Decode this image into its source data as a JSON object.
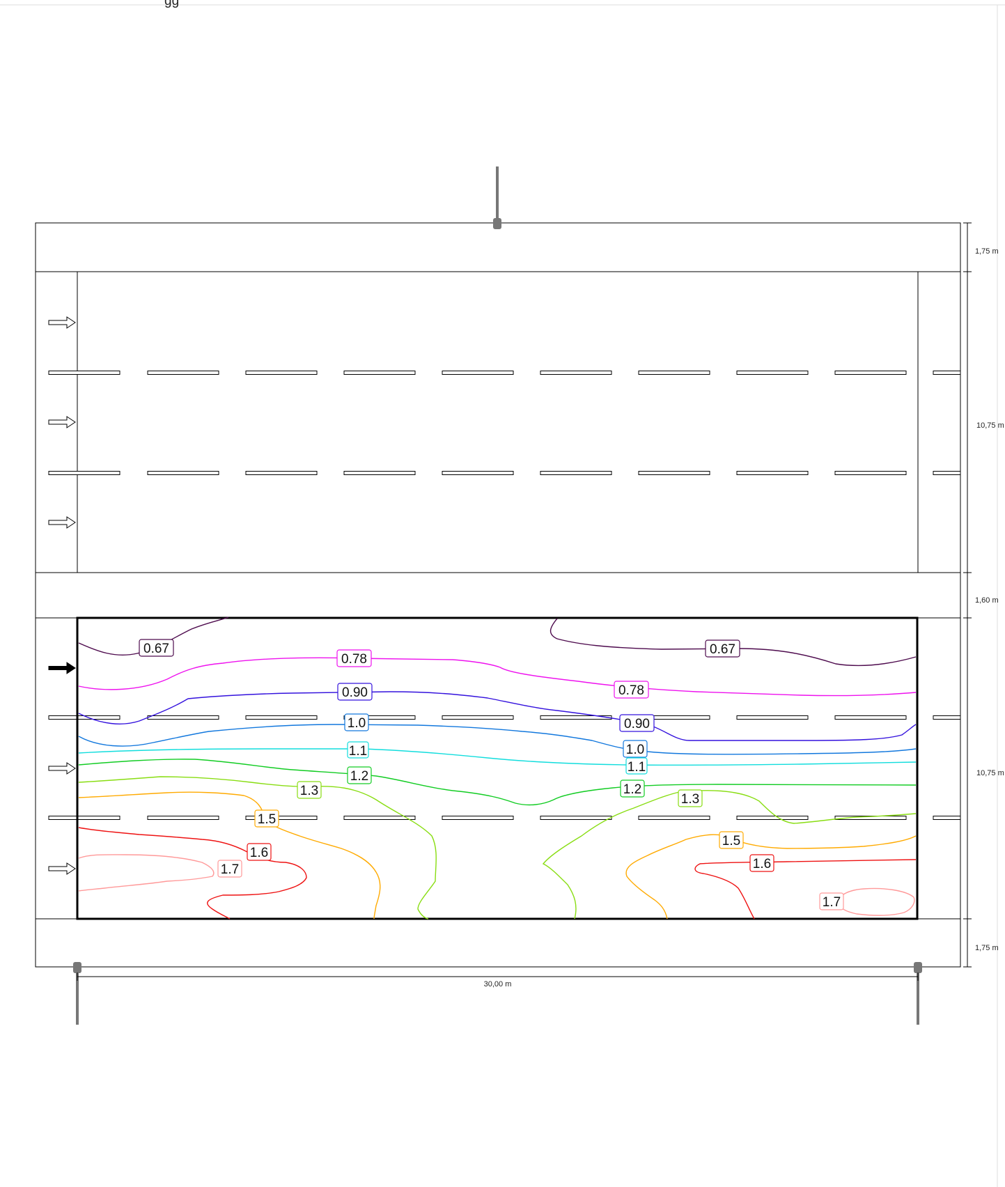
{
  "top_fragment": "gg",
  "dimensions": {
    "width_label": "30,00 m",
    "side_labels": [
      "1,75 m",
      "10,75 m",
      "1,60 m",
      "10,75 m",
      "1,75 m"
    ]
  },
  "roadway_upper": {
    "lanes": 3,
    "direction_arrows": [
      "outline-arrow-icon",
      "outline-arrow-icon",
      "outline-arrow-icon"
    ]
  },
  "roadway_lower": {
    "lanes": 3,
    "direction_arrows": [
      "filled-arrow-icon",
      "outline-arrow-icon",
      "outline-arrow-icon"
    ],
    "calculation_field": true
  },
  "poles": [
    {
      "name": "pole-top",
      "side": "top"
    },
    {
      "name": "pole-bottom-left",
      "side": "bottom"
    },
    {
      "name": "pole-bottom-right",
      "side": "bottom"
    }
  ],
  "contours": [
    {
      "level": "0.67",
      "color": "#4d0a4d"
    },
    {
      "level": "0.78",
      "color": "#ee11ee"
    },
    {
      "level": "0.90",
      "color": "#3311dd"
    },
    {
      "level": "1.0",
      "color": "#1177dd"
    },
    {
      "level": "1.1",
      "color": "#11dddd"
    },
    {
      "level": "1.2",
      "color": "#11cc22"
    },
    {
      "level": "1.3",
      "color": "#88dd11"
    },
    {
      "level": "1.5",
      "color": "#ffaa00"
    },
    {
      "level": "1.6",
      "color": "#ee1111"
    },
    {
      "level": "1.7",
      "color": "#ff9999"
    }
  ]
}
